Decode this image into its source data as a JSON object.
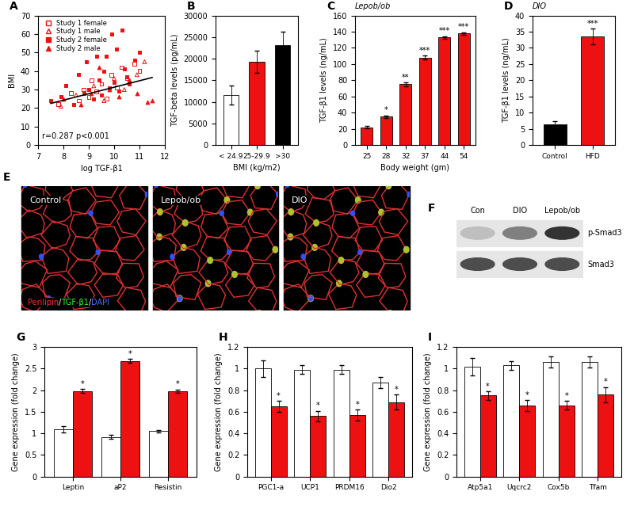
{
  "chart_data": [
    {
      "panel": "A",
      "type": "scatter",
      "xlabel": "log TGF-β1",
      "ylabel": "BMI",
      "xlim": [
        7,
        12
      ],
      "xticks": [
        7,
        8,
        9,
        10,
        11,
        12
      ],
      "ylim": [
        0,
        70
      ],
      "yticks": [
        0,
        10,
        20,
        30,
        40,
        50,
        60,
        70
      ],
      "legend": "upper left",
      "annotation": "r=0.287 p<0.001",
      "series": [
        {
          "name": "Study 1 female",
          "color": "#ee1111",
          "marker": "square_open",
          "x": [
            7.8,
            8.3,
            8.6,
            8.8,
            9.0,
            9.1,
            9.3,
            9.5,
            9.7,
            9.9,
            10.1,
            10.3,
            10.5,
            10.8,
            11.0
          ],
          "values": [
            22,
            28,
            24,
            30,
            26,
            35,
            29,
            33,
            25,
            38,
            31,
            42,
            36,
            44,
            40
          ]
        },
        {
          "name": "Study 1 male",
          "color": "#ee1111",
          "marker": "triangle_open",
          "x": [
            7.9,
            8.5,
            9.2,
            9.6,
            10.0,
            10.4,
            10.9,
            11.2
          ],
          "values": [
            21,
            27,
            32,
            24,
            36,
            30,
            38,
            45
          ]
        },
        {
          "name": "Study 2 female",
          "color": "#ee1111",
          "marker": "square",
          "x": [
            7.5,
            7.9,
            8.1,
            8.4,
            8.6,
            8.8,
            8.9,
            9.0,
            9.2,
            9.3,
            9.4,
            9.5,
            9.6,
            9.7,
            9.8,
            9.9,
            10.0,
            10.1,
            10.2,
            10.3,
            10.4,
            10.5,
            10.6,
            10.8,
            11.0
          ],
          "values": [
            24,
            26,
            32,
            22,
            38,
            28,
            45,
            30,
            25,
            48,
            35,
            27,
            40,
            48,
            31,
            60,
            34,
            52,
            29,
            62,
            41,
            37,
            33,
            46,
            50
          ]
        },
        {
          "name": "Study 2 male",
          "color": "#ee1111",
          "marker": "triangle",
          "x": [
            8.0,
            8.7,
            9.1,
            9.4,
            9.8,
            10.2,
            10.6,
            10.9,
            11.3,
            11.5
          ],
          "values": [
            25,
            22,
            28,
            42,
            30,
            26,
            35,
            28,
            23,
            24
          ]
        },
        {
          "type": "line",
          "color": "#000000",
          "x": [
            7.5,
            11.5
          ],
          "values": [
            22.5,
            36.5
          ]
        }
      ]
    },
    {
      "panel": "B",
      "type": "bar",
      "xlabel": "BMI (kg/m2)",
      "ylabel": "TGF-beta levels (pg/mL)",
      "categories": [
        "< 24.9",
        "25-29.9",
        ">30"
      ],
      "values": [
        11500,
        19300,
        23200
      ],
      "errors": [
        2200,
        2500,
        3000
      ],
      "colors": [
        "#ffffff",
        "#ee1111",
        "#000000"
      ],
      "ylim": [
        0,
        30000
      ],
      "yticks": [
        0,
        5000,
        10000,
        15000,
        20000,
        25000,
        30000
      ]
    },
    {
      "panel": "C",
      "type": "bar",
      "title": "Lepob/ob",
      "xlabel": "Body weight (gm)",
      "ylabel": "TGF-β1 levels (ng/mL)",
      "categories": [
        "25",
        "28",
        "32",
        "37",
        "44",
        "54"
      ],
      "values": [
        22,
        35,
        75,
        108,
        133,
        138
      ],
      "errors": [
        1.5,
        1.5,
        2,
        2.5,
        1.5,
        1.5
      ],
      "significance": [
        null,
        "*",
        "**",
        "***",
        "***",
        "***"
      ],
      "color": "#ee1111",
      "ylim": [
        0,
        160
      ],
      "yticks": [
        0,
        20,
        40,
        60,
        80,
        100,
        120,
        140,
        160
      ]
    },
    {
      "panel": "D",
      "type": "bar",
      "title": "DIO",
      "ylabel": "TGF-β1 levels (ng/mL)",
      "categories": [
        "Control",
        "HFD"
      ],
      "values": [
        6.5,
        33.5
      ],
      "errors": [
        0.8,
        2.5
      ],
      "significance": [
        null,
        "***"
      ],
      "colors": [
        "#000000",
        "#ee1111"
      ],
      "ylim": [
        0,
        40
      ],
      "yticks": [
        0,
        5,
        10,
        15,
        20,
        25,
        30,
        35,
        40
      ]
    },
    {
      "panel": "E",
      "type": "image",
      "panels": [
        "Control",
        "Lepob/ob",
        "DIO"
      ],
      "stain_label": [
        {
          "text": "Perilipin",
          "color": "#ff3030"
        },
        {
          "text": "/",
          "color": "#ffffff"
        },
        {
          "text": "TGF-β1",
          "color": "#30ff30"
        },
        {
          "text": "/",
          "color": "#ffffff"
        },
        {
          "text": "DAPI",
          "color": "#5070ff"
        }
      ]
    },
    {
      "panel": "F",
      "type": "blot",
      "lanes": [
        "Con",
        "DIO",
        "Lepob/ob"
      ],
      "rows": [
        "p-Smad3",
        "Smad3"
      ]
    },
    {
      "panel": "G",
      "type": "bar",
      "ylabel": "Gene expression (fold change)",
      "categories": [
        "Leptin",
        "aP2",
        "Resistin"
      ],
      "ylim": [
        0,
        3
      ],
      "yticks": [
        0,
        0.5,
        1,
        1.5,
        2,
        2.5,
        3
      ],
      "series": [
        {
          "color": "#ffffff",
          "values": [
            1.1,
            0.92,
            1.05
          ],
          "errors": [
            0.07,
            0.04,
            0.03
          ]
        },
        {
          "color": "#ee1111",
          "values": [
            1.98,
            2.68,
            1.98
          ],
          "errors": [
            0.05,
            0.05,
            0.04
          ],
          "significance": [
            "*",
            "*",
            "*"
          ]
        }
      ]
    },
    {
      "panel": "H",
      "type": "bar",
      "ylabel": "Gene expression (fold change)",
      "categories": [
        "PGC1-a",
        "UCP1",
        "PRDM16",
        "Dio2"
      ],
      "ylim": [
        0,
        1.2
      ],
      "yticks": [
        0,
        0.2,
        0.4,
        0.6,
        0.8,
        1,
        1.2
      ],
      "series": [
        {
          "color": "#ffffff",
          "values": [
            1.0,
            0.99,
            0.99,
            0.87
          ],
          "errors": [
            0.08,
            0.04,
            0.04,
            0.05
          ]
        },
        {
          "color": "#ee1111",
          "values": [
            0.65,
            0.56,
            0.57,
            0.69
          ],
          "errors": [
            0.05,
            0.05,
            0.05,
            0.07
          ],
          "significance": [
            "*",
            "*",
            "*",
            "*"
          ]
        }
      ]
    },
    {
      "panel": "I",
      "type": "bar",
      "ylabel": "Gene expression (fold change)",
      "categories": [
        "Atp5a1",
        "Uqcrc2",
        "Cox5b",
        "Tfam"
      ],
      "ylim": [
        0,
        1.2
      ],
      "yticks": [
        0,
        0.2,
        0.4,
        0.6,
        0.8,
        1,
        1.2
      ],
      "series": [
        {
          "color": "#ffffff",
          "values": [
            1.02,
            1.03,
            1.06,
            1.06
          ],
          "errors": [
            0.08,
            0.04,
            0.05,
            0.05
          ]
        },
        {
          "color": "#ee1111",
          "values": [
            0.75,
            0.66,
            0.66,
            0.76
          ],
          "errors": [
            0.04,
            0.05,
            0.04,
            0.07
          ],
          "significance": [
            "*",
            "*",
            "*",
            "*"
          ]
        }
      ]
    }
  ]
}
